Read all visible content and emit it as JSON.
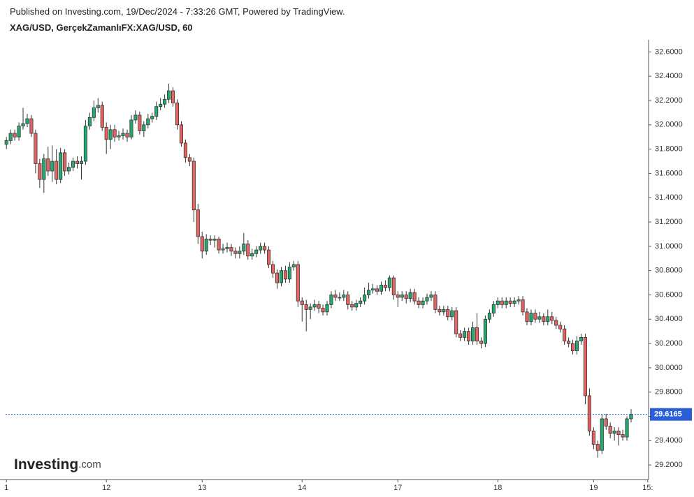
{
  "header": {
    "published": "Published on Investing.com, 19/Dec/2024 - 7:33:26 GMT, Powered by TradingView."
  },
  "logo": {
    "main": "Investing",
    "suffix": ".com"
  },
  "chart_data": {
    "type": "candlestick",
    "title": "XAG/USD, GerçekZamanlıFX:XAG/USD, 60",
    "up_color": "#22ab6e",
    "down_color": "#e8625f",
    "last_price": 29.6165,
    "last_price_color": "#2a5fd6",
    "xlim": [
      -0.2,
      154.2
    ],
    "ylim": [
      29.08,
      32.7
    ],
    "xticks": [
      {
        "value": 0,
        "label": "1"
      },
      {
        "value": 24,
        "label": "12"
      },
      {
        "value": 47,
        "label": "13"
      },
      {
        "value": 71,
        "label": "14"
      },
      {
        "value": 94,
        "label": "17"
      },
      {
        "value": 118,
        "label": "18"
      },
      {
        "value": 141,
        "label": "19"
      },
      {
        "value": 154,
        "label": "15:"
      }
    ],
    "yticks": [
      {
        "value": 29.2,
        "label": "29.2000"
      },
      {
        "value": 29.4,
        "label": "29.4000"
      },
      {
        "value": 29.6,
        "label": "29.6000"
      },
      {
        "value": 29.8,
        "label": "29.8000"
      },
      {
        "value": 30.0,
        "label": "30.0000"
      },
      {
        "value": 30.2,
        "label": "30.2000"
      },
      {
        "value": 30.4,
        "label": "30.4000"
      },
      {
        "value": 30.6,
        "label": "30.6000"
      },
      {
        "value": 30.8,
        "label": "30.8000"
      },
      {
        "value": 31.0,
        "label": "31.0000"
      },
      {
        "value": 31.2,
        "label": "31.2000"
      },
      {
        "value": 31.4,
        "label": "31.4000"
      },
      {
        "value": 31.6,
        "label": "31.6000"
      },
      {
        "value": 31.8,
        "label": "31.8000"
      },
      {
        "value": 32.0,
        "label": "32.0000"
      },
      {
        "value": 32.2,
        "label": "32.2000"
      },
      {
        "value": 32.4,
        "label": "32.4000"
      },
      {
        "value": 32.6,
        "label": "32.6000"
      }
    ],
    "ohlc": [
      [
        31.84,
        31.9,
        31.8,
        31.87
      ],
      [
        31.87,
        31.96,
        31.84,
        31.93
      ],
      [
        31.93,
        31.96,
        31.87,
        31.9
      ],
      [
        31.9,
        32.02,
        31.87,
        31.99
      ],
      [
        31.99,
        32.14,
        31.96,
        32.01
      ],
      [
        32.01,
        32.09,
        31.98,
        32.05
      ],
      [
        32.05,
        32.08,
        31.9,
        31.93
      ],
      [
        31.93,
        31.96,
        31.6,
        31.68
      ],
      [
        31.68,
        31.72,
        31.48,
        31.55
      ],
      [
        31.55,
        31.76,
        31.44,
        31.72
      ],
      [
        31.72,
        31.82,
        31.58,
        31.62
      ],
      [
        31.62,
        31.83,
        31.53,
        31.7
      ],
      [
        31.7,
        31.8,
        31.51,
        31.55
      ],
      [
        31.55,
        31.81,
        31.52,
        31.77
      ],
      [
        31.77,
        31.8,
        31.58,
        31.62
      ],
      [
        31.62,
        31.69,
        31.59,
        31.65
      ],
      [
        31.65,
        31.73,
        31.62,
        31.7
      ],
      [
        31.7,
        31.74,
        31.64,
        31.68
      ],
      [
        31.68,
        31.74,
        31.55,
        31.7
      ],
      [
        31.7,
        32.04,
        31.67,
        31.99
      ],
      [
        31.99,
        32.1,
        31.96,
        32.06
      ],
      [
        32.06,
        32.2,
        32.03,
        32.14
      ],
      [
        32.14,
        32.22,
        32.1,
        32.16
      ],
      [
        32.16,
        32.19,
        31.95,
        31.98
      ],
      [
        31.98,
        32.02,
        31.76,
        31.88
      ],
      [
        31.88,
        32.0,
        31.8,
        31.96
      ],
      [
        31.96,
        32.0,
        31.86,
        31.9
      ],
      [
        31.9,
        31.95,
        31.87,
        31.91
      ],
      [
        31.91,
        31.97,
        31.88,
        31.93
      ],
      [
        31.93,
        31.96,
        31.86,
        31.9
      ],
      [
        31.9,
        32.08,
        31.88,
        32.04
      ],
      [
        32.04,
        32.12,
        32.01,
        32.08
      ],
      [
        32.08,
        32.11,
        31.92,
        31.95
      ],
      [
        31.95,
        32.03,
        31.9,
        32.0
      ],
      [
        32.0,
        32.09,
        31.97,
        32.05
      ],
      [
        32.05,
        32.1,
        32.02,
        32.07
      ],
      [
        32.07,
        32.19,
        32.04,
        32.15
      ],
      [
        32.15,
        32.22,
        32.12,
        32.17
      ],
      [
        32.17,
        32.25,
        32.14,
        32.21
      ],
      [
        32.21,
        32.34,
        32.18,
        32.28
      ],
      [
        32.28,
        32.31,
        32.15,
        32.18
      ],
      [
        32.18,
        32.21,
        31.96,
        32.0
      ],
      [
        32.0,
        32.03,
        31.82,
        31.85
      ],
      [
        31.85,
        31.88,
        31.69,
        31.73
      ],
      [
        31.73,
        31.76,
        31.66,
        31.7
      ],
      [
        31.7,
        31.73,
        31.2,
        31.3
      ],
      [
        31.3,
        31.35,
        31.02,
        31.08
      ],
      [
        31.08,
        31.12,
        30.9,
        30.96
      ],
      [
        30.96,
        31.1,
        30.93,
        31.06
      ],
      [
        31.06,
        31.09,
        31.01,
        31.05
      ],
      [
        31.05,
        31.09,
        30.99,
        31.06
      ],
      [
        31.06,
        31.08,
        30.94,
        30.97
      ],
      [
        30.97,
        31.02,
        30.94,
        30.98
      ],
      [
        30.98,
        31.03,
        30.95,
        30.99
      ],
      [
        30.99,
        31.02,
        30.92,
        30.96
      ],
      [
        30.96,
        30.99,
        30.9,
        30.94
      ],
      [
        30.94,
        31.0,
        30.9,
        30.96
      ],
      [
        30.96,
        31.11,
        30.93,
        31.02
      ],
      [
        31.02,
        31.05,
        30.89,
        30.92
      ],
      [
        30.92,
        30.98,
        30.89,
        30.94
      ],
      [
        30.94,
        31.0,
        30.91,
        30.97
      ],
      [
        30.97,
        31.03,
        30.94,
        31.0
      ],
      [
        31.0,
        31.03,
        30.94,
        30.97
      ],
      [
        30.97,
        31.0,
        30.82,
        30.85
      ],
      [
        30.85,
        30.88,
        30.74,
        30.78
      ],
      [
        30.78,
        30.81,
        30.65,
        30.7
      ],
      [
        30.7,
        30.83,
        30.67,
        30.8
      ],
      [
        30.8,
        30.84,
        30.7,
        30.73
      ],
      [
        30.73,
        30.87,
        30.7,
        30.83
      ],
      [
        30.83,
        30.88,
        30.8,
        30.85
      ],
      [
        30.85,
        30.88,
        30.5,
        30.55
      ],
      [
        30.55,
        30.58,
        30.38,
        30.52
      ],
      [
        30.52,
        30.56,
        30.3,
        30.48
      ],
      [
        30.48,
        30.53,
        30.4,
        30.5
      ],
      [
        30.5,
        30.56,
        30.47,
        30.52
      ],
      [
        30.52,
        30.55,
        30.45,
        30.49
      ],
      [
        30.49,
        30.52,
        30.43,
        30.46
      ],
      [
        30.46,
        30.55,
        30.43,
        30.52
      ],
      [
        30.52,
        30.63,
        30.49,
        30.6
      ],
      [
        30.6,
        30.64,
        30.55,
        30.58
      ],
      [
        30.58,
        30.62,
        30.55,
        30.58
      ],
      [
        30.58,
        30.64,
        30.55,
        30.6
      ],
      [
        30.6,
        30.63,
        30.48,
        30.52
      ],
      [
        30.52,
        30.55,
        30.47,
        30.5
      ],
      [
        30.5,
        30.56,
        30.47,
        30.53
      ],
      [
        30.53,
        30.58,
        30.5,
        30.55
      ],
      [
        30.55,
        30.66,
        30.52,
        30.6
      ],
      [
        30.6,
        30.7,
        30.57,
        30.64
      ],
      [
        30.64,
        30.69,
        30.61,
        30.65
      ],
      [
        30.65,
        30.68,
        30.6,
        30.63
      ],
      [
        30.63,
        30.71,
        30.6,
        30.68
      ],
      [
        30.68,
        30.72,
        30.63,
        30.66
      ],
      [
        30.66,
        30.76,
        30.63,
        30.74
      ],
      [
        30.74,
        30.76,
        30.56,
        30.6
      ],
      [
        30.6,
        30.63,
        30.5,
        30.58
      ],
      [
        30.58,
        30.63,
        30.55,
        30.6
      ],
      [
        30.6,
        30.63,
        30.53,
        30.57
      ],
      [
        30.57,
        30.65,
        30.54,
        30.62
      ],
      [
        30.62,
        30.65,
        30.52,
        30.55
      ],
      [
        30.55,
        30.58,
        30.49,
        30.52
      ],
      [
        30.52,
        30.58,
        30.49,
        30.55
      ],
      [
        30.55,
        30.61,
        30.52,
        30.58
      ],
      [
        30.58,
        30.63,
        30.55,
        30.6
      ],
      [
        30.6,
        30.63,
        30.45,
        30.48
      ],
      [
        30.48,
        30.51,
        30.43,
        30.46
      ],
      [
        30.46,
        30.51,
        30.43,
        30.48
      ],
      [
        30.48,
        30.51,
        30.39,
        30.42
      ],
      [
        30.42,
        30.5,
        30.39,
        30.47
      ],
      [
        30.47,
        30.5,
        30.25,
        30.28
      ],
      [
        30.28,
        30.31,
        30.22,
        30.25
      ],
      [
        30.25,
        30.33,
        30.22,
        30.3
      ],
      [
        30.3,
        30.33,
        30.19,
        30.22
      ],
      [
        30.22,
        30.38,
        30.19,
        30.33
      ],
      [
        30.33,
        30.45,
        30.19,
        30.22
      ],
      [
        30.22,
        30.25,
        30.16,
        30.2
      ],
      [
        30.2,
        30.43,
        30.17,
        30.4
      ],
      [
        30.4,
        30.48,
        30.37,
        30.45
      ],
      [
        30.45,
        30.55,
        30.42,
        30.52
      ],
      [
        30.52,
        30.58,
        30.49,
        30.55
      ],
      [
        30.55,
        30.58,
        30.49,
        30.52
      ],
      [
        30.52,
        30.58,
        30.49,
        30.55
      ],
      [
        30.55,
        30.58,
        30.5,
        30.53
      ],
      [
        30.53,
        30.58,
        30.5,
        30.55
      ],
      [
        30.55,
        30.59,
        30.52,
        30.56
      ],
      [
        30.56,
        30.59,
        30.43,
        30.46
      ],
      [
        30.46,
        30.49,
        30.35,
        30.38
      ],
      [
        30.38,
        30.48,
        30.35,
        30.45
      ],
      [
        30.45,
        30.48,
        30.37,
        30.4
      ],
      [
        30.4,
        30.46,
        30.37,
        30.42
      ],
      [
        30.42,
        30.45,
        30.35,
        30.38
      ],
      [
        30.38,
        30.48,
        30.35,
        30.42
      ],
      [
        30.42,
        30.46,
        30.36,
        30.39
      ],
      [
        30.39,
        30.42,
        30.32,
        30.35
      ],
      [
        30.35,
        30.38,
        30.29,
        30.32
      ],
      [
        30.32,
        30.35,
        30.19,
        30.22
      ],
      [
        30.22,
        30.25,
        30.17,
        30.2
      ],
      [
        30.2,
        30.23,
        30.11,
        30.14
      ],
      [
        30.14,
        30.26,
        30.11,
        30.22
      ],
      [
        30.22,
        30.28,
        30.19,
        30.25
      ],
      [
        30.25,
        30.28,
        29.7,
        29.77
      ],
      [
        29.77,
        29.83,
        29.44,
        29.48
      ],
      [
        29.48,
        29.51,
        29.33,
        29.37
      ],
      [
        29.37,
        29.4,
        29.26,
        29.32
      ],
      [
        29.32,
        29.62,
        29.29,
        29.58
      ],
      [
        29.58,
        29.62,
        29.49,
        29.52
      ],
      [
        29.52,
        29.55,
        29.42,
        29.46
      ],
      [
        29.46,
        29.51,
        29.4,
        29.48
      ],
      [
        29.48,
        29.51,
        29.36,
        29.45
      ],
      [
        29.45,
        29.49,
        29.4,
        29.43
      ],
      [
        29.43,
        29.6,
        29.4,
        29.58
      ],
      [
        29.58,
        29.66,
        29.55,
        29.6165
      ]
    ]
  }
}
